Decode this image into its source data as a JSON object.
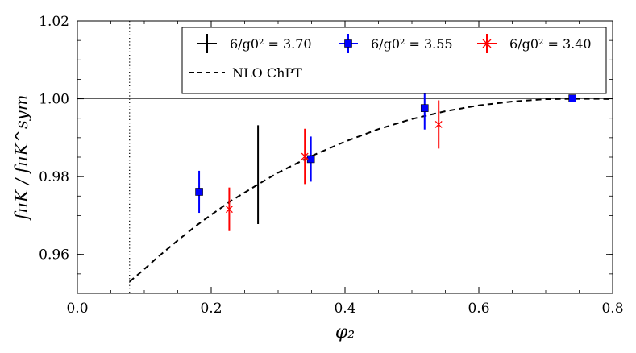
{
  "chart_data": {
    "type": "scatter",
    "xlabel": "φ₂",
    "ylabel": "fπK / fπK^sym",
    "xlim": [
      0.0,
      0.8
    ],
    "ylim": [
      0.95,
      1.02
    ],
    "xticks": [
      "0.0",
      "0.2",
      "0.4",
      "0.6",
      "0.8"
    ],
    "yticks": [
      "0.96",
      "0.98",
      "1.00",
      "1.02"
    ],
    "xtick_values": [
      0.0,
      0.2,
      0.4,
      0.6,
      0.8
    ],
    "ytick_values": [
      0.96,
      0.98,
      1.0,
      1.02
    ],
    "reference_hline": 1.0,
    "reference_vline": 0.078,
    "series": [
      {
        "name": "6/g0² = 3.70",
        "color": "#000000",
        "marker": "plus",
        "points": [
          {
            "x": 0.27,
            "y": 0.9805,
            "err": 0.0127
          }
        ]
      },
      {
        "name": "6/g0² = 3.55",
        "color": "#0000ff",
        "marker": "square",
        "points": [
          {
            "x": 0.182,
            "y": 0.9761,
            "err": 0.0054
          },
          {
            "x": 0.349,
            "y": 0.9845,
            "err": 0.0058
          },
          {
            "x": 0.519,
            "y": 0.9976,
            "err": 0.0055
          },
          {
            "x": 0.74,
            "y": 1.0001,
            "err": 0.0002
          }
        ]
      },
      {
        "name": "6/g0² = 3.40",
        "color": "#ff0000",
        "marker": "x",
        "points": [
          {
            "x": 0.227,
            "y": 0.9716,
            "err": 0.0056
          },
          {
            "x": 0.34,
            "y": 0.9852,
            "err": 0.0071
          },
          {
            "x": 0.54,
            "y": 0.9934,
            "err": 0.0062
          }
        ]
      }
    ],
    "fit_curve": {
      "name": "NLO ChPT",
      "style": "dashed",
      "color": "#000000",
      "x": [
        0.078,
        0.1,
        0.12,
        0.15,
        0.18,
        0.2,
        0.23,
        0.27,
        0.3,
        0.35,
        0.4,
        0.45,
        0.5,
        0.55,
        0.6,
        0.65,
        0.7,
        0.74,
        0.78,
        0.8
      ],
      "y": [
        0.953,
        0.9562,
        0.9593,
        0.9636,
        0.9677,
        0.9702,
        0.9738,
        0.978,
        0.981,
        0.9853,
        0.989,
        0.9922,
        0.9948,
        0.9968,
        0.9983,
        0.9993,
        0.9999,
        1.0,
        1.0,
        0.9999
      ]
    },
    "legend": {
      "placement": "top-right",
      "entries": [
        {
          "label": "6/g0² = 3.70",
          "color": "#000000",
          "kind": "errorbar"
        },
        {
          "label": "6/g0² = 3.55",
          "color": "#0000ff",
          "kind": "errorbar-square"
        },
        {
          "label": "6/g0² = 3.40",
          "color": "#ff0000",
          "kind": "errorbar-x"
        },
        {
          "label": "NLO ChPT",
          "color": "#000000",
          "kind": "dashed"
        }
      ]
    }
  }
}
